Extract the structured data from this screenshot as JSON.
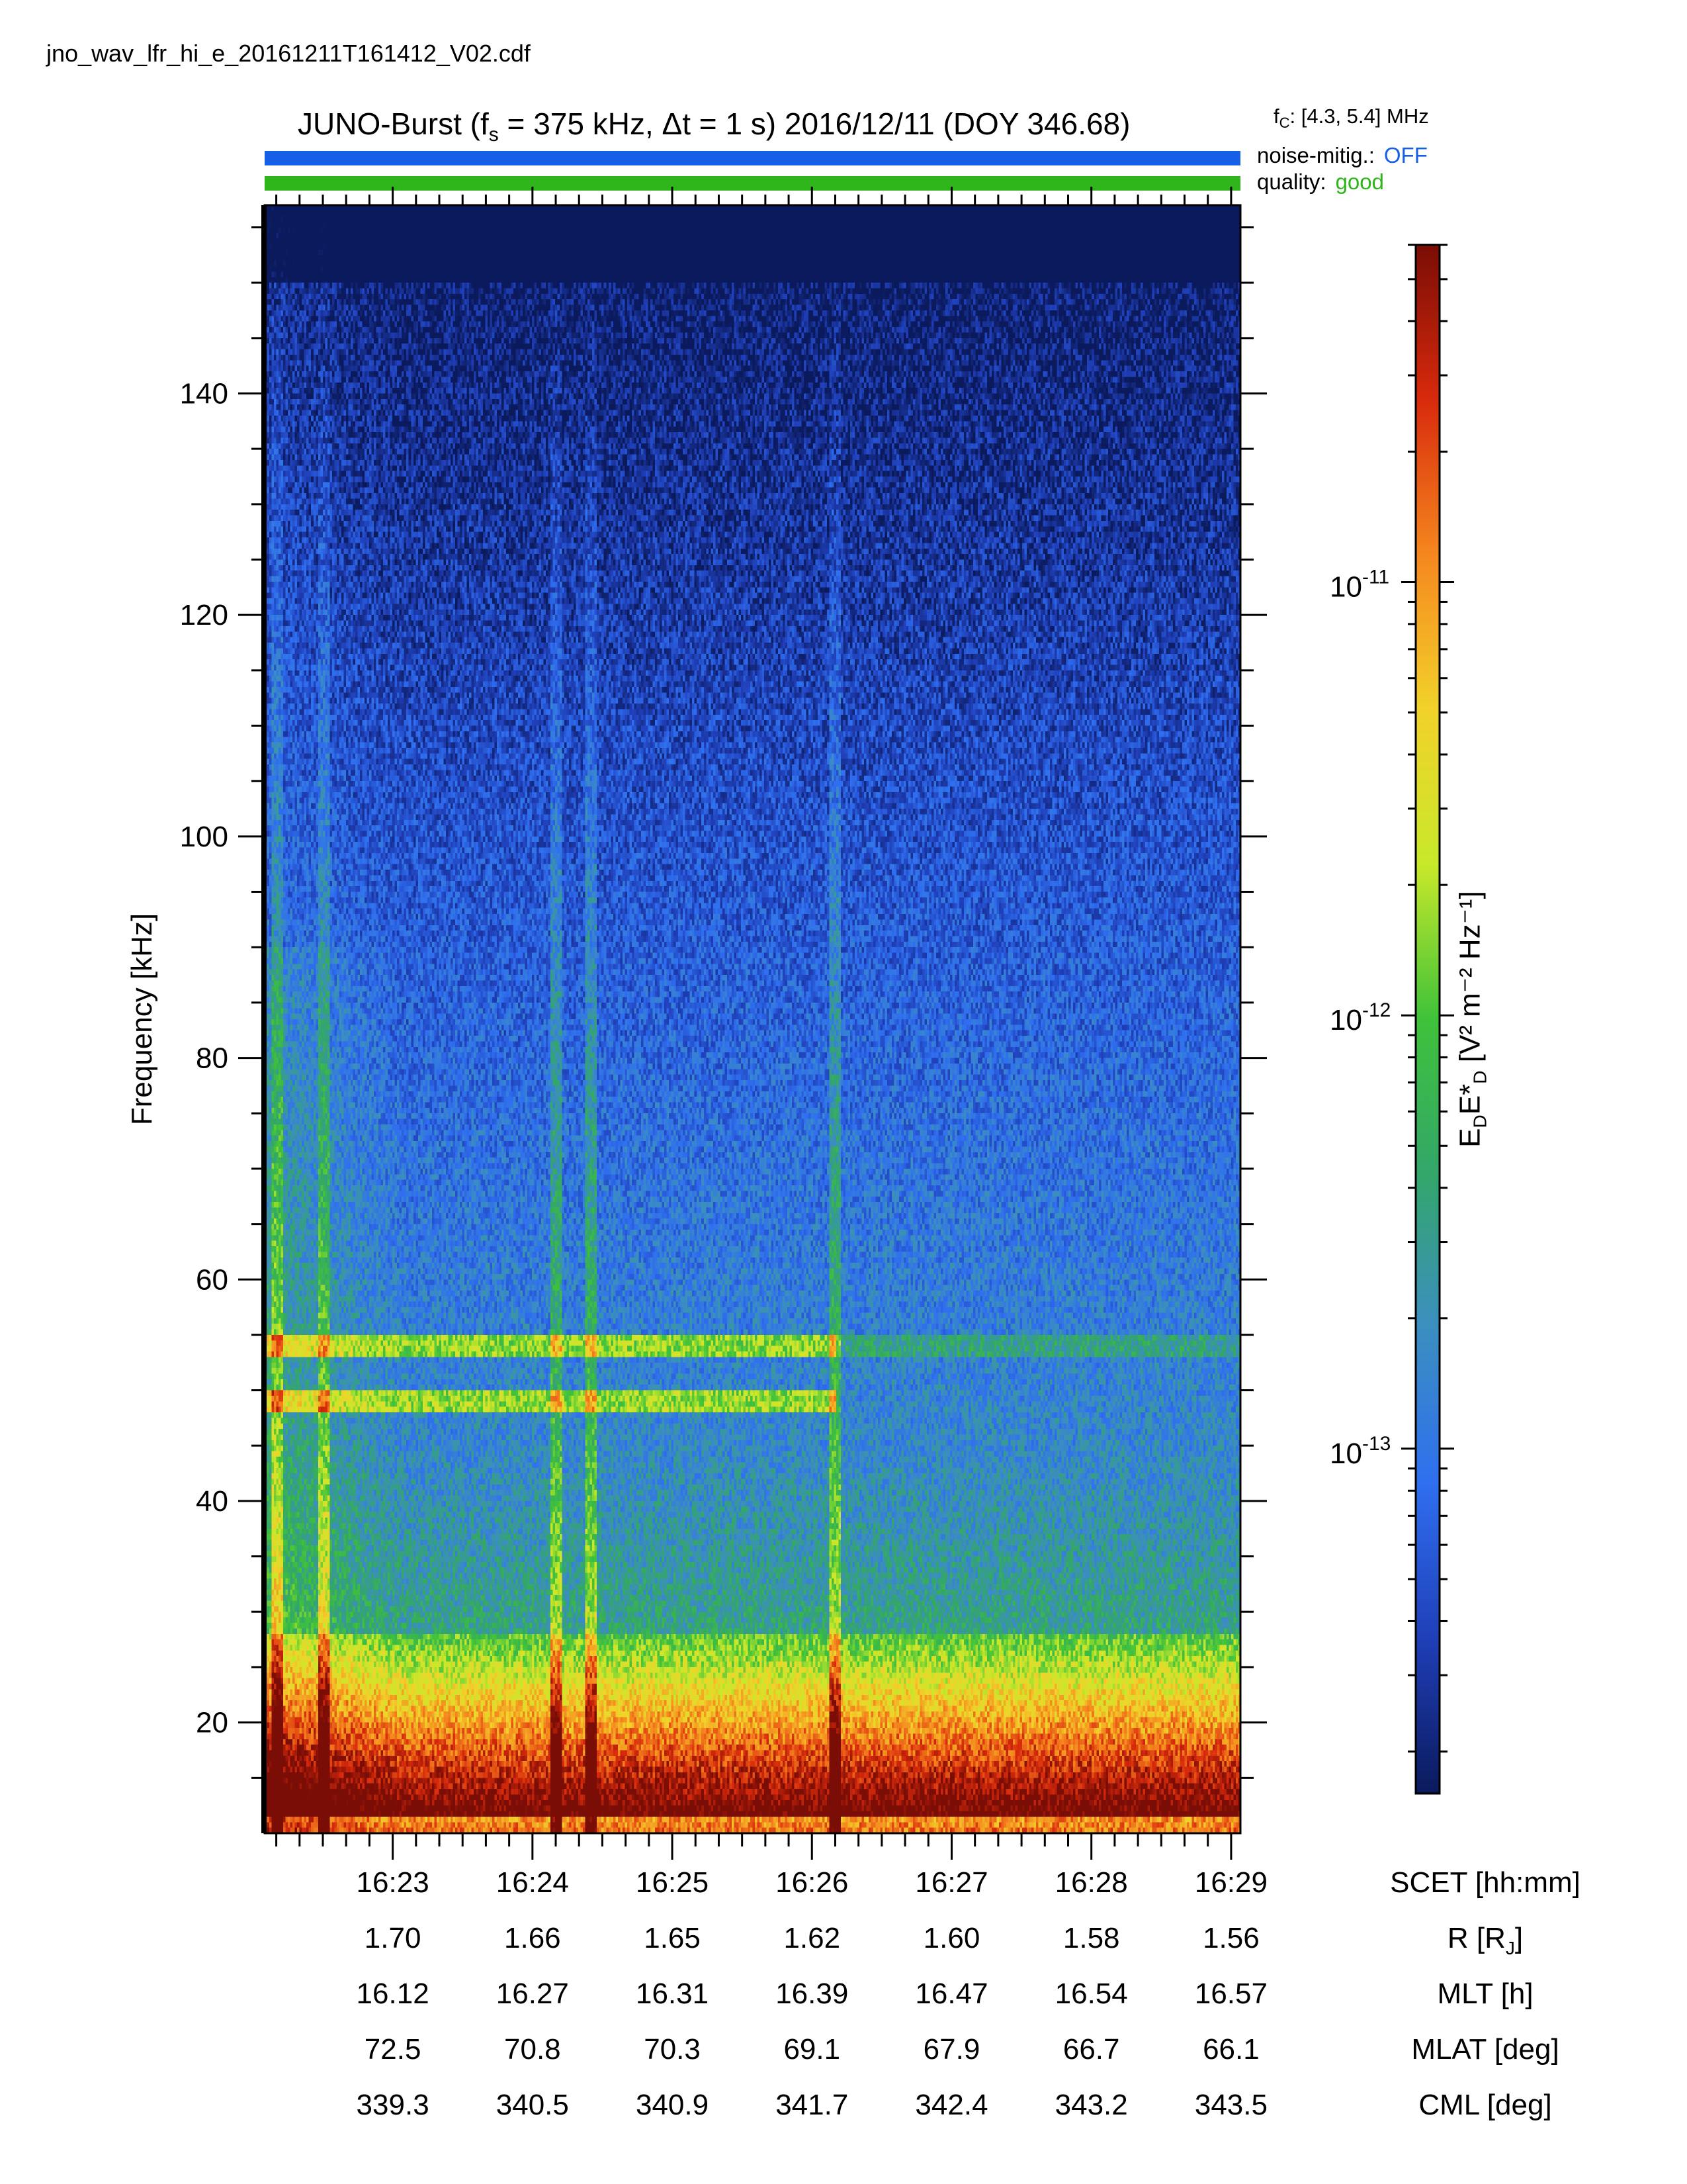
{
  "filename": "jno_wav_lfr_hi_e_20161211T161412_V02.cdf",
  "title": {
    "prefix": "JUNO-Burst (f",
    "sub": "s",
    "mid": " = 375 kHz, Δt = 1 s)  2016/12/11 (DOY 346.68)"
  },
  "fc": {
    "label": "f",
    "sub": "C",
    "value": ": [4.3, 5.4] MHz"
  },
  "status": {
    "noise_label": "noise-mitig.:",
    "noise_value": "OFF",
    "noise_color": "#1560e6",
    "quality_label": "quality:",
    "quality_value": "good",
    "quality_color": "#2eb51a"
  },
  "chart_data": {
    "type": "heatmap",
    "ylabel": "Frequency [kHz]",
    "ylim": [
      10,
      157
    ],
    "yticks": [
      20,
      40,
      60,
      80,
      100,
      120,
      140
    ],
    "xlabel": "SCET [hh:mm]",
    "xlim": [
      "16:22:05",
      "16:29:04"
    ],
    "xticks": [
      "16:23",
      "16:24",
      "16:25",
      "16:26",
      "16:27",
      "16:28",
      "16:29"
    ],
    "colorbar": {
      "label_main": "E",
      "label_sub1": "D",
      "label_main2": "E*",
      "label_sub2": "D",
      "label_units": " [V² m⁻² Hz⁻¹]",
      "scale": "log",
      "range": [
        1.6e-14,
        6e-11
      ],
      "ticks": [
        {
          "base": "10",
          "exp": "-11",
          "value": 1e-11
        },
        {
          "base": "10",
          "exp": "-12",
          "value": 1e-12
        },
        {
          "base": "10",
          "exp": "-13",
          "value": 1e-13
        }
      ],
      "colormap": [
        "#0b1a5c",
        "#1f3fb8",
        "#2f6ff0",
        "#3b8ec0",
        "#33a66a",
        "#3fc23a",
        "#c8e82a",
        "#f2d22a",
        "#f5871e",
        "#d82a0c",
        "#7a0d05"
      ]
    },
    "features": {
      "emission_band_khz": [
        10,
        28
      ],
      "harmonic_lines_khz": [
        49,
        54
      ],
      "vertical_bursts_near": [
        "16:22:10",
        "16:22:30",
        "16:24:10",
        "16:24:25",
        "16:26:10"
      ]
    }
  },
  "ephemeris": {
    "rows": [
      {
        "name": "SCET [hh:mm]",
        "values": [
          "16:23",
          "16:24",
          "16:25",
          "16:26",
          "16:27",
          "16:28",
          "16:29"
        ]
      },
      {
        "name": "R [R",
        "name_sub": "J",
        "name_tail": "]",
        "values": [
          "1.70",
          "1.66",
          "1.65",
          "1.62",
          "1.60",
          "1.58",
          "1.56"
        ]
      },
      {
        "name": "MLT [h]",
        "values": [
          "16.12",
          "16.27",
          "16.31",
          "16.39",
          "16.47",
          "16.54",
          "16.57"
        ]
      },
      {
        "name": "MLAT [deg]",
        "values": [
          "72.5",
          "70.8",
          "70.3",
          "69.1",
          "67.9",
          "66.7",
          "66.1"
        ]
      },
      {
        "name": "CML [deg]",
        "values": [
          "339.3",
          "340.5",
          "340.9",
          "341.7",
          "342.4",
          "343.2",
          "343.5"
        ]
      }
    ]
  }
}
